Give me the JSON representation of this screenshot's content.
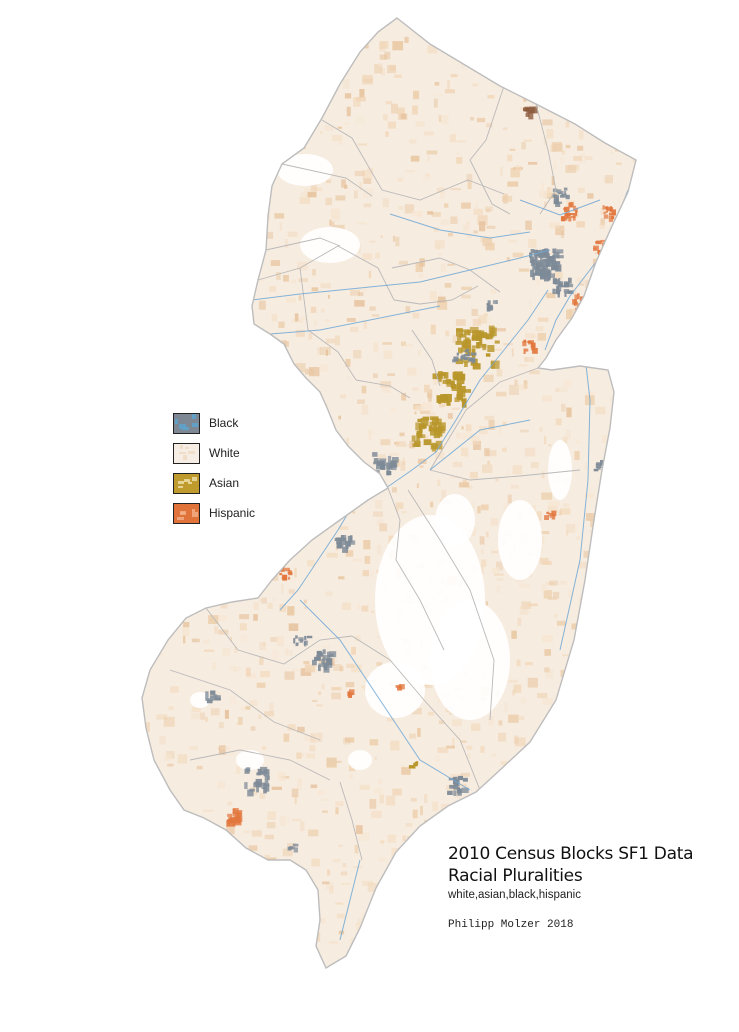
{
  "map": {
    "region": "New Jersey",
    "colors": {
      "state_fill": "#f7ece0",
      "state_border": "#bdbdbd",
      "county_border": "#b9b9b9",
      "rivers": "#6fa8d6",
      "white_tone": "#f1d9bf",
      "black": "#7d8a97",
      "asian": "#b8962a",
      "hispanic": "#e2773e",
      "empty": "#ffffff"
    }
  },
  "legend": {
    "items": [
      {
        "label": "Black",
        "color": "#7e8894",
        "accent": "#5aa6cf"
      },
      {
        "label": "White",
        "color": "#f6eee4",
        "accent": "#efd9c0"
      },
      {
        "label": "Asian",
        "color": "#bf9a2c",
        "accent": "#f0e2b0"
      },
      {
        "label": "Hispanic",
        "color": "#e0733a",
        "accent": "#f3b28a"
      }
    ]
  },
  "title": {
    "line1": "2010 Census Blocks SF1 Data",
    "line2": "Racial Pluralities",
    "subtitle": "white,asian,black,hispanic",
    "credit": "Philipp Molzer 2018"
  }
}
